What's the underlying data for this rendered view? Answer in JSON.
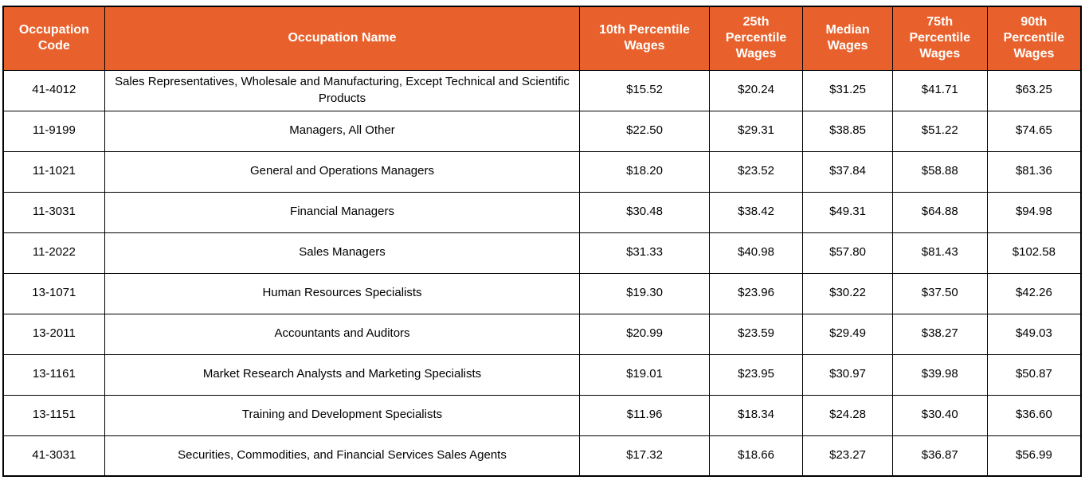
{
  "colors": {
    "header_bg": "#E8612C",
    "header_text": "#FFFFFF",
    "body_text": "#000000",
    "border_color": "#000000",
    "page_bg": "#FFFFFF"
  },
  "chart_data": {
    "type": "table",
    "columns": [
      "Occupation Code",
      "Occupation Name",
      "10th Percentile Wages",
      "25th Percentile Wages",
      "Median Wages",
      "75th Percentile Wages",
      "90th Percentile Wages"
    ],
    "rows": [
      [
        "41-4012",
        "Sales Representatives, Wholesale and Manufacturing, Except Technical and Scientific Products",
        "$15.52",
        "$20.24",
        "$31.25",
        "$41.71",
        "$63.25"
      ],
      [
        "11-9199",
        "Managers, All Other",
        "$22.50",
        "$29.31",
        "$38.85",
        "$51.22",
        "$74.65"
      ],
      [
        "11-1021",
        "General and Operations Managers",
        "$18.20",
        "$23.52",
        "$37.84",
        "$58.88",
        "$81.36"
      ],
      [
        "11-3031",
        "Financial Managers",
        "$30.48",
        "$38.42",
        "$49.31",
        "$64.88",
        "$94.98"
      ],
      [
        "11-2022",
        "Sales Managers",
        "$31.33",
        "$40.98",
        "$57.80",
        "$81.43",
        "$102.58"
      ],
      [
        "13-1071",
        "Human Resources Specialists",
        "$19.30",
        "$23.96",
        "$30.22",
        "$37.50",
        "$42.26"
      ],
      [
        "13-2011",
        "Accountants and Auditors",
        "$20.99",
        "$23.59",
        "$29.49",
        "$38.27",
        "$49.03"
      ],
      [
        "13-1161",
        "Market Research Analysts and Marketing Specialists",
        "$19.01",
        "$23.95",
        "$30.97",
        "$39.98",
        "$50.87"
      ],
      [
        "13-1151",
        "Training and Development Specialists",
        "$11.96",
        "$18.34",
        "$24.28",
        "$30.40",
        "$36.60"
      ],
      [
        "41-3031",
        "Securities, Commodities, and Financial Services Sales Agents",
        "$17.32",
        "$18.66",
        "$23.27",
        "$36.87",
        "$56.99"
      ]
    ]
  }
}
